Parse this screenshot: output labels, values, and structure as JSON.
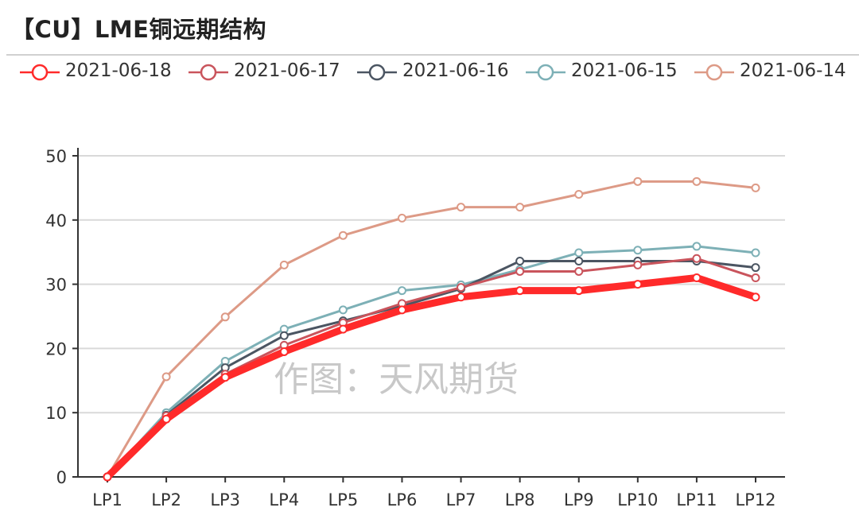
{
  "title": "【CU】LME铜远期结构",
  "watermark": "作图：天风期货",
  "chart_data": {
    "type": "line",
    "title": "【CU】LME铜远期结构",
    "xlabel": "",
    "ylabel": "",
    "ylim": [
      0,
      50
    ],
    "yticks": [
      0,
      10,
      20,
      30,
      40,
      50
    ],
    "grid": true,
    "legend_position": "top",
    "categories": [
      "LP1",
      "LP2",
      "LP3",
      "LP4",
      "LP5",
      "LP6",
      "LP7",
      "LP8",
      "LP9",
      "LP10",
      "LP11",
      "LP12"
    ],
    "series": [
      {
        "name": "2021-06-18",
        "color": "#ff2a2a",
        "width": 9,
        "values": [
          0,
          9,
          15.5,
          19.5,
          23,
          26,
          28,
          29,
          29,
          30,
          31,
          28
        ]
      },
      {
        "name": "2021-06-17",
        "color": "#c9545c",
        "width": 3,
        "values": [
          0,
          9.5,
          16,
          20.5,
          24,
          27,
          29.5,
          32,
          32,
          33,
          34,
          31
        ]
      },
      {
        "name": "2021-06-16",
        "color": "#4b5562",
        "width": 3,
        "values": [
          0,
          9.6,
          17,
          22,
          24.3,
          26.6,
          29.3,
          33.6,
          33.6,
          33.6,
          33.6,
          32.6
        ]
      },
      {
        "name": "2021-06-15",
        "color": "#7db0b6",
        "width": 3,
        "values": [
          0,
          10,
          18,
          23,
          26,
          29,
          29.9,
          32.3,
          34.9,
          35.3,
          35.9,
          34.9
        ]
      },
      {
        "name": "2021-06-14",
        "color": "#dd9a86",
        "width": 3,
        "values": [
          0,
          15.6,
          24.9,
          33,
          37.6,
          40.3,
          42,
          42,
          44,
          46,
          46,
          45
        ]
      }
    ]
  }
}
